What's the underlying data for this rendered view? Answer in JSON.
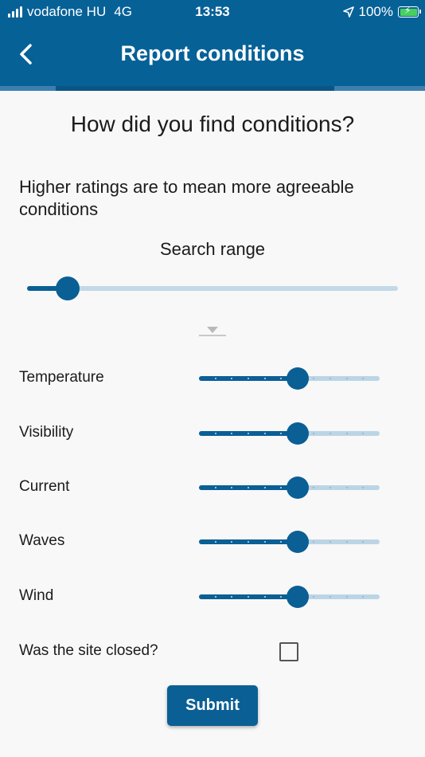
{
  "status_bar": {
    "carrier": "vodafone HU",
    "network": "4G",
    "time": "13:53",
    "battery": "100%"
  },
  "header": {
    "title": "Report conditions",
    "accent_color": "#066197"
  },
  "main": {
    "question": "How did you find conditions?",
    "hint": "Higher ratings are to mean more agreeable conditions",
    "search_range": {
      "label": "Search range",
      "value_fraction": 0.11
    },
    "ratings": [
      {
        "label": "Temperature",
        "value": 6,
        "max": 11
      },
      {
        "label": "Visibility",
        "value": 6,
        "max": 11
      },
      {
        "label": "Current",
        "value": 6,
        "max": 11
      },
      {
        "label": "Waves",
        "value": 6,
        "max": 11
      },
      {
        "label": "Wind",
        "value": 6,
        "max": 11
      }
    ],
    "site_closed": {
      "label": "Was the site closed?",
      "checked": false
    },
    "submit_label": "Submit"
  }
}
